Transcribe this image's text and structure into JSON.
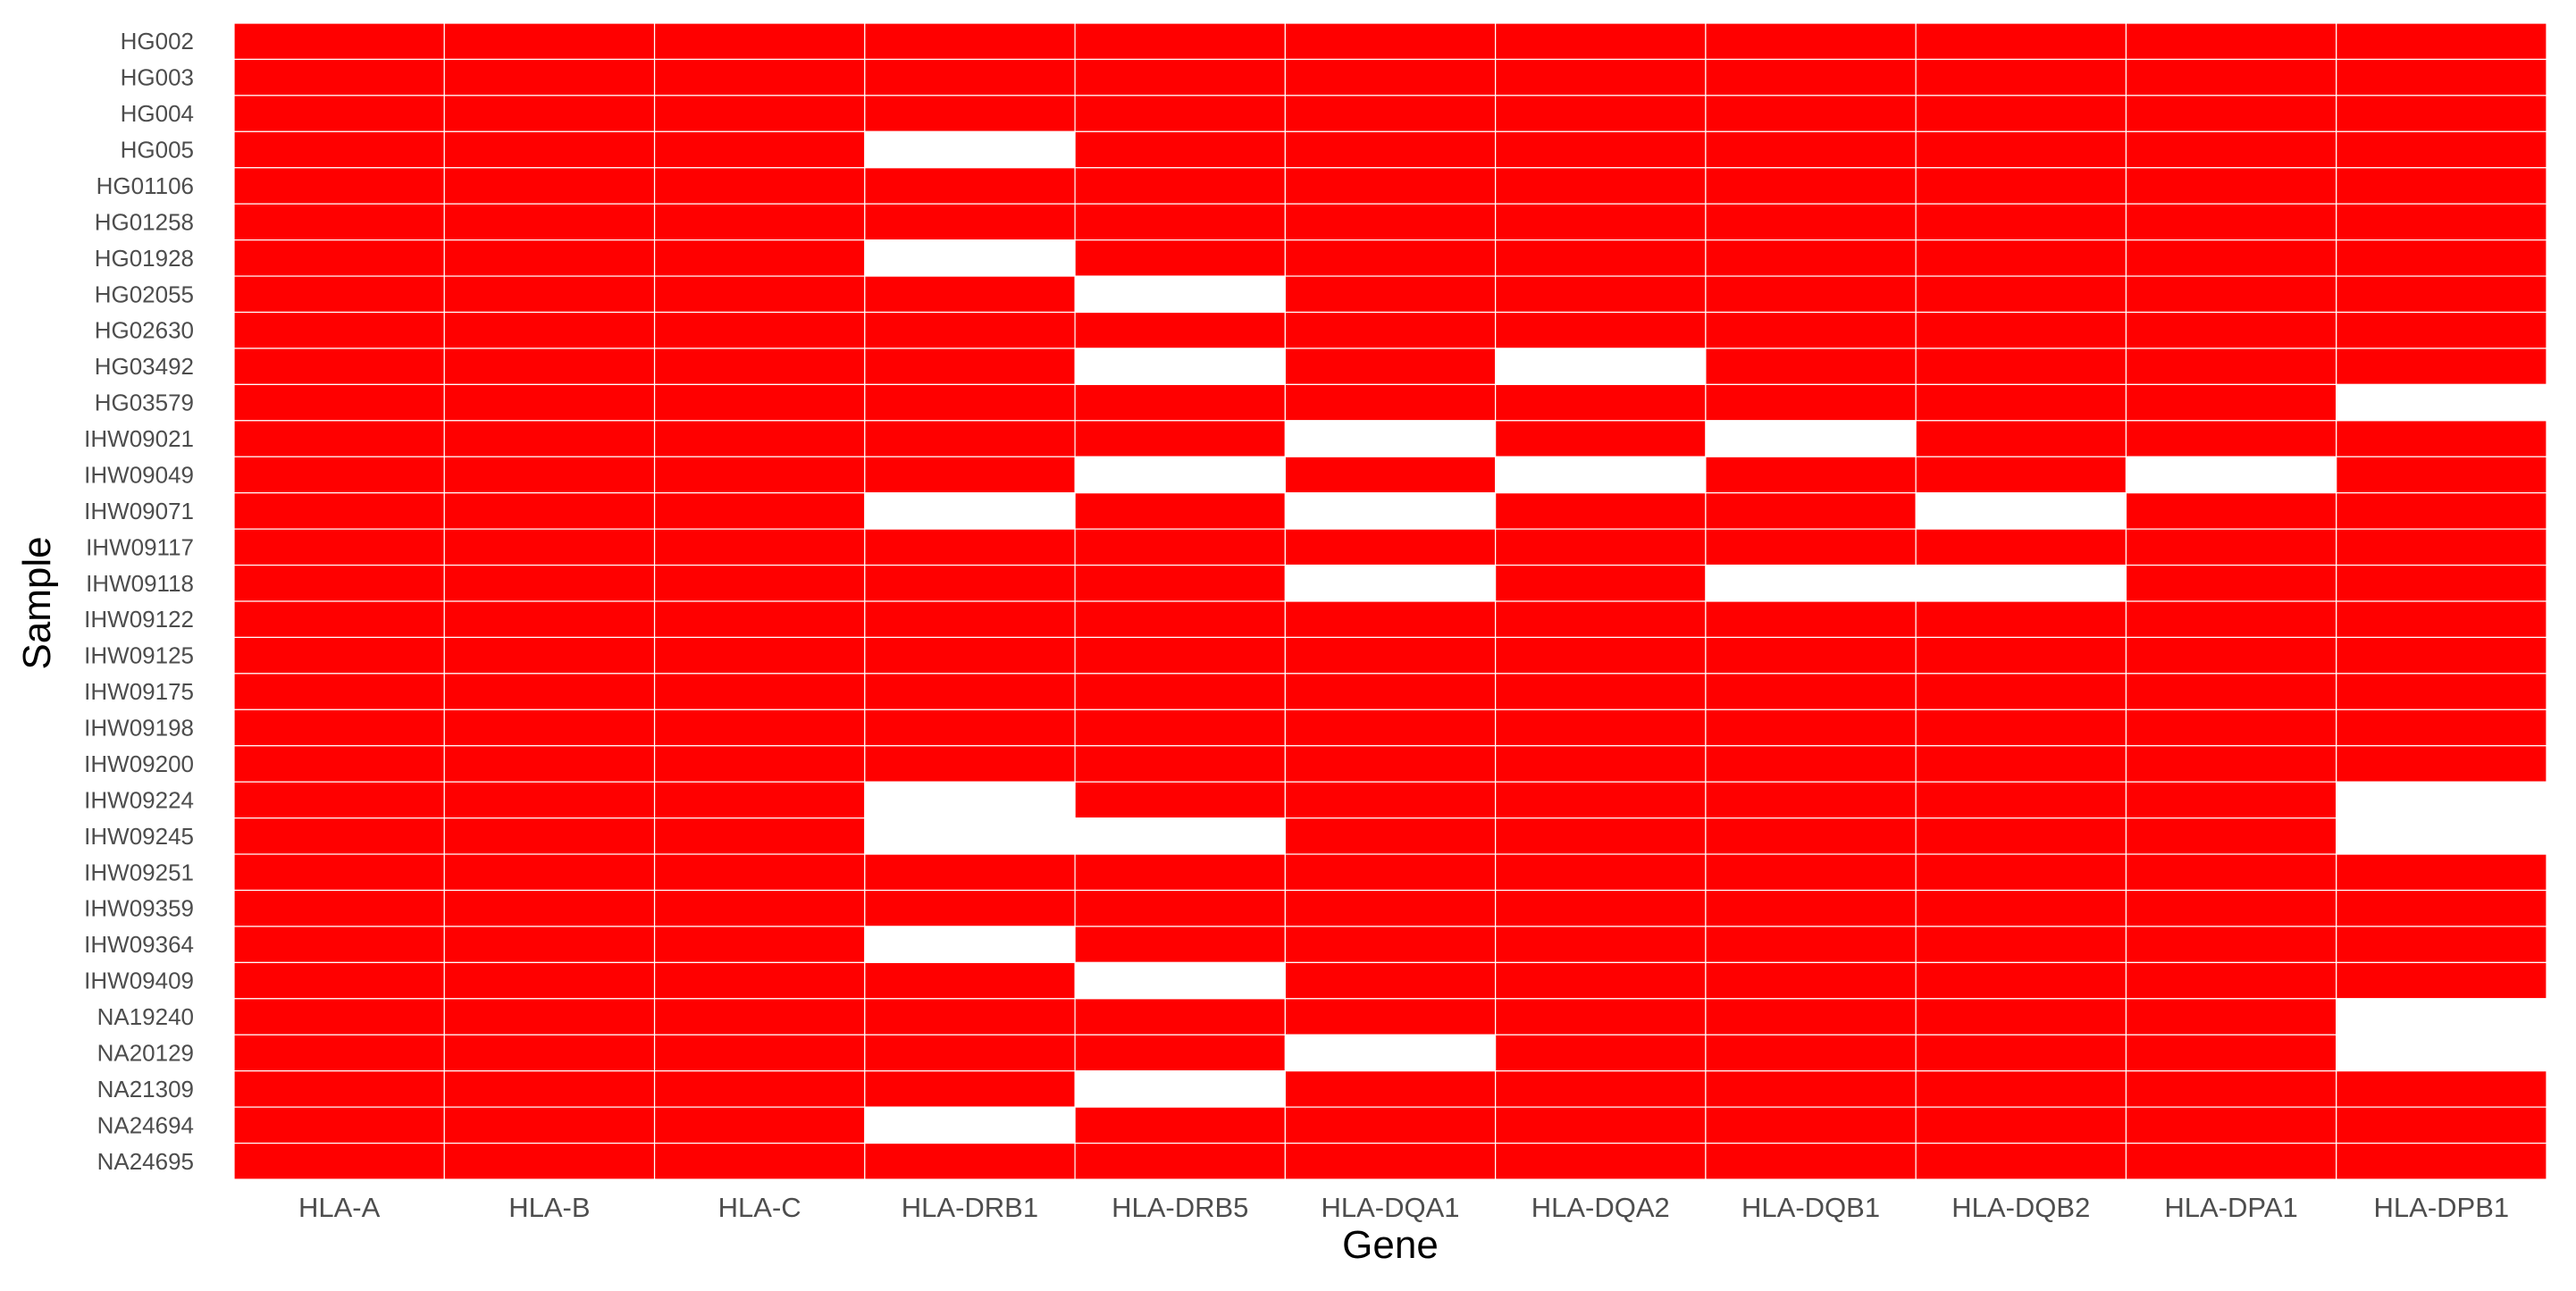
{
  "chart_data": {
    "type": "heatmap",
    "xlabel": "Gene",
    "ylabel": "Sample",
    "x": [
      "HLA-A",
      "HLA-B",
      "HLA-C",
      "HLA-DRB1",
      "HLA-DRB5",
      "HLA-DQA1",
      "HLA-DQA2",
      "HLA-DQB1",
      "HLA-DQB2",
      "HLA-DPA1",
      "HLA-DPB1"
    ],
    "y": [
      "HG002",
      "HG003",
      "HG004",
      "HG005",
      "HG01106",
      "HG01258",
      "HG01928",
      "HG02055",
      "HG02630",
      "HG03492",
      "HG03579",
      "IHW09021",
      "IHW09049",
      "IHW09071",
      "IHW09117",
      "IHW09118",
      "IHW09122",
      "IHW09125",
      "IHW09175",
      "IHW09198",
      "IHW09200",
      "IHW09224",
      "IHW09245",
      "IHW09251",
      "IHW09359",
      "IHW09364",
      "IHW09409",
      "NA19240",
      "NA20129",
      "NA21309",
      "NA24694",
      "NA24695"
    ],
    "values": [
      [
        1,
        1,
        1,
        1,
        1,
        1,
        1,
        1,
        1,
        1,
        1
      ],
      [
        1,
        1,
        1,
        1,
        1,
        1,
        1,
        1,
        1,
        1,
        1
      ],
      [
        1,
        1,
        1,
        1,
        1,
        1,
        1,
        1,
        1,
        1,
        1
      ],
      [
        1,
        1,
        1,
        0,
        1,
        1,
        1,
        1,
        1,
        1,
        1
      ],
      [
        1,
        1,
        1,
        1,
        1,
        1,
        1,
        1,
        1,
        1,
        1
      ],
      [
        1,
        1,
        1,
        1,
        1,
        1,
        1,
        1,
        1,
        1,
        1
      ],
      [
        1,
        1,
        1,
        0,
        1,
        1,
        1,
        1,
        1,
        1,
        1
      ],
      [
        1,
        1,
        1,
        1,
        0,
        1,
        1,
        1,
        1,
        1,
        1
      ],
      [
        1,
        1,
        1,
        1,
        1,
        1,
        1,
        1,
        1,
        1,
        1
      ],
      [
        1,
        1,
        1,
        1,
        0,
        1,
        0,
        1,
        1,
        1,
        1
      ],
      [
        1,
        1,
        1,
        1,
        1,
        1,
        1,
        1,
        1,
        1,
        0
      ],
      [
        1,
        1,
        1,
        1,
        1,
        0,
        1,
        0,
        1,
        1,
        1
      ],
      [
        1,
        1,
        1,
        1,
        0,
        1,
        0,
        1,
        1,
        0,
        1
      ],
      [
        1,
        1,
        1,
        0,
        1,
        0,
        1,
        1,
        0,
        1,
        1
      ],
      [
        1,
        1,
        1,
        1,
        1,
        1,
        1,
        1,
        1,
        1,
        1
      ],
      [
        1,
        1,
        1,
        1,
        1,
        0,
        1,
        0,
        0,
        1,
        1
      ],
      [
        1,
        1,
        1,
        1,
        1,
        1,
        1,
        1,
        1,
        1,
        1
      ],
      [
        1,
        1,
        1,
        1,
        1,
        1,
        1,
        1,
        1,
        1,
        1
      ],
      [
        1,
        1,
        1,
        1,
        1,
        1,
        1,
        1,
        1,
        1,
        1
      ],
      [
        1,
        1,
        1,
        1,
        1,
        1,
        1,
        1,
        1,
        1,
        1
      ],
      [
        1,
        1,
        1,
        1,
        1,
        1,
        1,
        1,
        1,
        1,
        1
      ],
      [
        1,
        1,
        1,
        0,
        1,
        1,
        1,
        1,
        1,
        1,
        0
      ],
      [
        1,
        1,
        1,
        0,
        0,
        1,
        1,
        1,
        1,
        1,
        0
      ],
      [
        1,
        1,
        1,
        1,
        1,
        1,
        1,
        1,
        1,
        1,
        1
      ],
      [
        1,
        1,
        1,
        1,
        1,
        1,
        1,
        1,
        1,
        1,
        1
      ],
      [
        1,
        1,
        1,
        0,
        1,
        1,
        1,
        1,
        1,
        1,
        1
      ],
      [
        1,
        1,
        1,
        1,
        0,
        1,
        1,
        1,
        1,
        1,
        1
      ],
      [
        1,
        1,
        1,
        1,
        1,
        1,
        1,
        1,
        1,
        1,
        0
      ],
      [
        1,
        1,
        1,
        1,
        1,
        0,
        1,
        1,
        1,
        1,
        0
      ],
      [
        1,
        1,
        1,
        1,
        0,
        1,
        1,
        1,
        1,
        1,
        1
      ],
      [
        1,
        1,
        1,
        0,
        1,
        1,
        1,
        1,
        1,
        1,
        1
      ],
      [
        1,
        1,
        1,
        1,
        1,
        1,
        1,
        1,
        1,
        1,
        1
      ]
    ],
    "colors": {
      "present": "#ff0000",
      "absent": "#ffffff",
      "grid": "#ffffff"
    },
    "legend": "none",
    "grid": true
  }
}
